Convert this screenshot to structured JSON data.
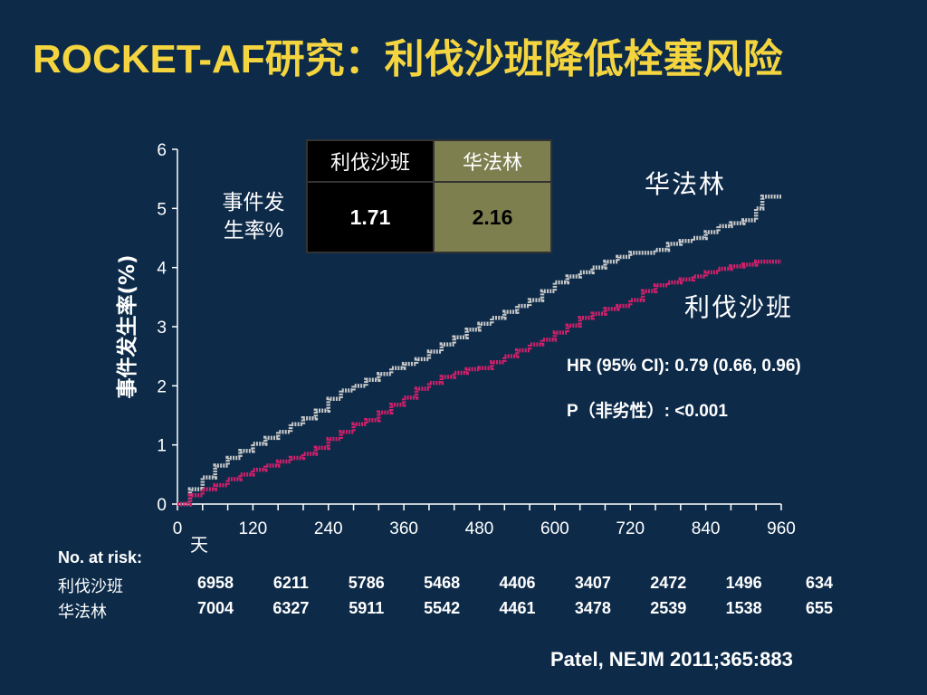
{
  "title": "ROCKET-AF研究：利伐沙班降低栓塞风险",
  "event_rate": {
    "row_label_line1": "事件发",
    "row_label_line2": "生率%",
    "col_rivaroxaban": "利伐沙班",
    "col_warfarin": "华法林",
    "val_rivaroxaban": "1.71",
    "val_warfarin": "2.16",
    "color_rivaroxaban": "#000000",
    "color_warfarin": "#7d7f4f"
  },
  "labels": {
    "warfarin": "华法林",
    "rivaroxaban": "利伐沙班"
  },
  "stats": {
    "hr": "HR (95% CI): 0.79 (0.66, 0.96)",
    "p": "P（非劣性）: <0.001"
  },
  "at_risk": {
    "header": "No. at risk:",
    "rivaroxaban_label": "利伐沙班",
    "warfarin_label": "华法林",
    "rivaroxaban": [
      "6958",
      "6211",
      "5786",
      "5468",
      "4406",
      "3407",
      "2472",
      "1496",
      "634"
    ],
    "warfarin": [
      "7004",
      "6327",
      "5911",
      "5542",
      "4461",
      "3478",
      "2539",
      "1538",
      "655"
    ]
  },
  "citation": "Patel, NEJM 2011;365:883",
  "chart_data": {
    "type": "line",
    "ylabel": "事件发生率(%)",
    "xlabel": "天",
    "xlim": [
      0,
      960
    ],
    "ylim": [
      0,
      6
    ],
    "xticks": [
      "0",
      "120",
      "240",
      "360",
      "480",
      "600",
      "720",
      "840",
      "960"
    ],
    "yticks": [
      "0",
      "1",
      "2",
      "3",
      "4",
      "5",
      "6"
    ],
    "grid": false,
    "series": [
      {
        "name": "华法林",
        "color": "#c8c8c8",
        "x": [
          0,
          20,
          40,
          60,
          80,
          100,
          120,
          140,
          160,
          180,
          200,
          220,
          240,
          260,
          280,
          300,
          320,
          340,
          360,
          380,
          400,
          420,
          440,
          460,
          480,
          500,
          520,
          540,
          560,
          580,
          600,
          620,
          640,
          660,
          680,
          700,
          720,
          740,
          760,
          780,
          800,
          820,
          840,
          860,
          880,
          900,
          920,
          930,
          940,
          960
        ],
        "y": [
          0,
          0.25,
          0.45,
          0.65,
          0.78,
          0.9,
          1.02,
          1.12,
          1.22,
          1.35,
          1.45,
          1.58,
          1.78,
          1.92,
          2.0,
          2.1,
          2.2,
          2.3,
          2.37,
          2.45,
          2.58,
          2.7,
          2.82,
          2.95,
          3.05,
          3.15,
          3.25,
          3.35,
          3.45,
          3.6,
          3.75,
          3.85,
          3.92,
          4.0,
          4.1,
          4.18,
          4.25,
          4.25,
          4.3,
          4.4,
          4.45,
          4.5,
          4.6,
          4.7,
          4.75,
          4.8,
          5.0,
          5.2,
          5.2,
          5.2
        ]
      },
      {
        "name": "利伐沙班",
        "color": "#d61f6b",
        "x": [
          0,
          20,
          40,
          60,
          80,
          100,
          120,
          140,
          160,
          180,
          200,
          220,
          240,
          260,
          280,
          300,
          320,
          340,
          360,
          380,
          400,
          420,
          440,
          460,
          480,
          500,
          520,
          540,
          560,
          580,
          600,
          620,
          640,
          660,
          680,
          700,
          720,
          740,
          760,
          780,
          800,
          820,
          840,
          860,
          880,
          900,
          920,
          940,
          960
        ],
        "y": [
          0,
          0.15,
          0.25,
          0.32,
          0.42,
          0.5,
          0.58,
          0.65,
          0.72,
          0.78,
          0.85,
          0.95,
          1.1,
          1.22,
          1.35,
          1.42,
          1.55,
          1.68,
          1.8,
          1.95,
          2.05,
          2.15,
          2.22,
          2.28,
          2.3,
          2.4,
          2.5,
          2.6,
          2.7,
          2.78,
          2.9,
          3.02,
          3.15,
          3.22,
          3.3,
          3.35,
          3.45,
          3.6,
          3.7,
          3.75,
          3.8,
          3.85,
          3.92,
          3.98,
          4.02,
          4.05,
          4.1,
          4.1,
          4.1
        ]
      }
    ]
  }
}
